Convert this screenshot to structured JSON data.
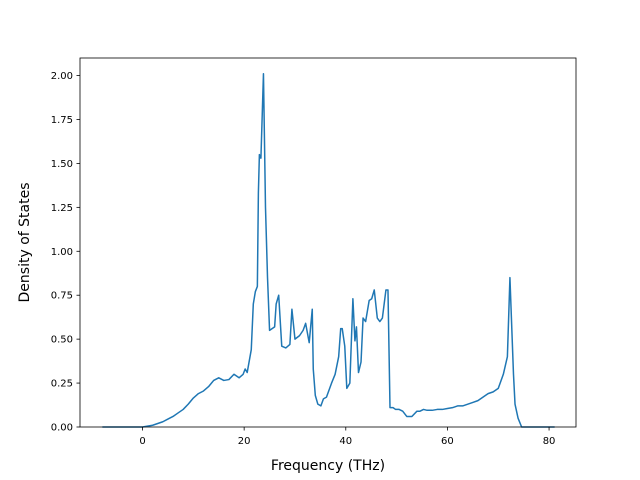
{
  "chart_data": {
    "type": "line",
    "title": "",
    "xlabel": "Frequency (THz)",
    "ylabel": "Density of States",
    "xlim": [
      -12.3,
      85.3
    ],
    "ylim": [
      0,
      2.1
    ],
    "xticks": [
      0,
      20,
      40,
      60,
      80
    ],
    "xtick_labels": [
      "0",
      "20",
      "40",
      "60",
      "80"
    ],
    "yticks": [
      0.0,
      0.25,
      0.5,
      0.75,
      1.0,
      1.25,
      1.5,
      1.75,
      2.0
    ],
    "ytick_labels": [
      "0.00",
      "0.25",
      "0.50",
      "0.75",
      "1.00",
      "1.25",
      "1.50",
      "1.75",
      "2.00"
    ],
    "grid": false,
    "color": "#1f77b4",
    "series": [
      {
        "x": [
          -7.9,
          0,
          1,
          2,
          3,
          4,
          5,
          6,
          7,
          8,
          9,
          10,
          11,
          12,
          13,
          14,
          15,
          16,
          17,
          18,
          19,
          19.8,
          20.2,
          20.6,
          21.4,
          21.8,
          22.2,
          22.6,
          22.8,
          23.0,
          23.3,
          23.8,
          24.2,
          24.6,
          25.0,
          26.0,
          26.3,
          26.8,
          27.4,
          28.2,
          29.0,
          29.4,
          30.0,
          30.9,
          31.6,
          32.1,
          32.8,
          33.4,
          33.6,
          34.0,
          34.5,
          35.1,
          35.6,
          36.2,
          37.2,
          37.9,
          38.6,
          39.0,
          39.3,
          39.8,
          40.2,
          40.8,
          41.4,
          41.8,
          42.1,
          42.5,
          43.0,
          43.4,
          43.9,
          44.6,
          45.1,
          45.6,
          46.2,
          46.7,
          47.2,
          47.9,
          48.3,
          48.7,
          49.3,
          49.8,
          50.5,
          51.2,
          52.0,
          53.0,
          54.0,
          54.6,
          55.3,
          56.0,
          57.0,
          58.0,
          59.0,
          60.0,
          61.0,
          62.0,
          63.0,
          64.0,
          65.0,
          66.0,
          67.0,
          68.0,
          69.0,
          70.0,
          71.0,
          71.8,
          72.3,
          73.0,
          73.3,
          73.9,
          74.6,
          75.5,
          81.1
        ],
        "y": [
          0,
          0,
          0.005,
          0.01,
          0.02,
          0.03,
          0.045,
          0.06,
          0.08,
          0.1,
          0.13,
          0.165,
          0.19,
          0.205,
          0.23,
          0.265,
          0.28,
          0.265,
          0.27,
          0.3,
          0.28,
          0.3,
          0.33,
          0.31,
          0.44,
          0.7,
          0.77,
          0.8,
          1.33,
          1.55,
          1.53,
          2.01,
          1.25,
          0.85,
          0.55,
          0.57,
          0.7,
          0.75,
          0.46,
          0.45,
          0.47,
          0.67,
          0.5,
          0.52,
          0.55,
          0.59,
          0.48,
          0.67,
          0.33,
          0.18,
          0.13,
          0.12,
          0.16,
          0.17,
          0.25,
          0.3,
          0.4,
          0.56,
          0.56,
          0.46,
          0.22,
          0.25,
          0.73,
          0.49,
          0.57,
          0.31,
          0.37,
          0.62,
          0.6,
          0.72,
          0.73,
          0.78,
          0.62,
          0.6,
          0.62,
          0.78,
          0.78,
          0.11,
          0.11,
          0.1,
          0.1,
          0.09,
          0.06,
          0.06,
          0.09,
          0.09,
          0.1,
          0.095,
          0.095,
          0.1,
          0.1,
          0.105,
          0.11,
          0.12,
          0.12,
          0.13,
          0.14,
          0.15,
          0.17,
          0.19,
          0.2,
          0.22,
          0.3,
          0.4,
          0.85,
          0.3,
          0.13,
          0.05,
          0,
          0,
          0
        ]
      }
    ]
  }
}
